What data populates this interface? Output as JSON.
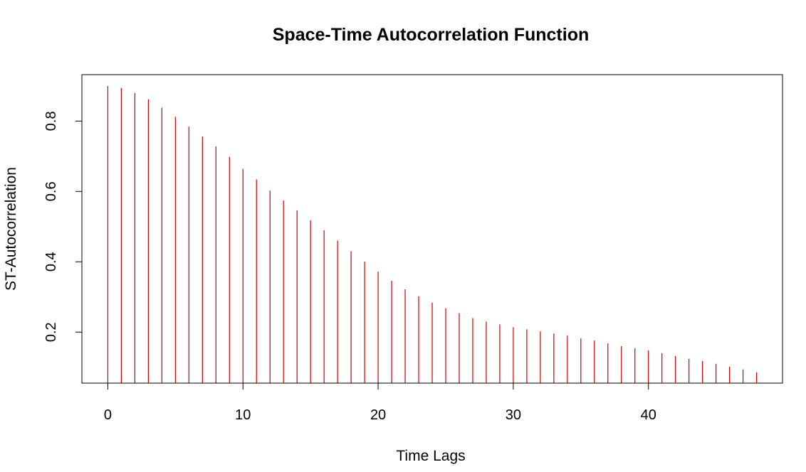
{
  "chart_data": {
    "type": "bar",
    "title": "Space-Time Autocorrelation Function",
    "xlabel": "Time Lags",
    "ylabel": "ST-Autocorrelation",
    "x": [
      0,
      1,
      2,
      3,
      4,
      5,
      6,
      7,
      8,
      9,
      10,
      11,
      12,
      13,
      14,
      15,
      16,
      17,
      18,
      19,
      20,
      21,
      22,
      23,
      24,
      25,
      26,
      27,
      28,
      29,
      30,
      31,
      32,
      33,
      34,
      35,
      36,
      37,
      38,
      39,
      40,
      41,
      42,
      43,
      44,
      45,
      46,
      47,
      48
    ],
    "values": [
      0.9,
      0.894,
      0.88,
      0.862,
      0.838,
      0.812,
      0.784,
      0.756,
      0.728,
      0.698,
      0.664,
      0.634,
      0.602,
      0.574,
      0.546,
      0.518,
      0.49,
      0.46,
      0.43,
      0.4,
      0.372,
      0.346,
      0.322,
      0.302,
      0.284,
      0.268,
      0.254,
      0.24,
      0.23,
      0.222,
      0.214,
      0.208,
      0.202,
      0.196,
      0.19,
      0.182,
      0.176,
      0.168,
      0.16,
      0.154,
      0.148,
      0.14,
      0.132,
      0.124,
      0.118,
      0.11,
      0.102,
      0.094,
      0.086
    ],
    "xlim": [
      -1.92,
      49.92
    ],
    "ylim": [
      0.055,
      0.932
    ],
    "xticks": [
      0,
      10,
      20,
      30,
      40
    ],
    "xtick_labels": [
      "0",
      "10",
      "20",
      "30",
      "40"
    ],
    "yticks": [
      0.2,
      0.4,
      0.6,
      0.8
    ],
    "ytick_labels": [
      "0.2",
      "0.4",
      "0.6",
      "0.8"
    ],
    "bar_color": "#cc0000",
    "grid": false,
    "legend": "none"
  }
}
